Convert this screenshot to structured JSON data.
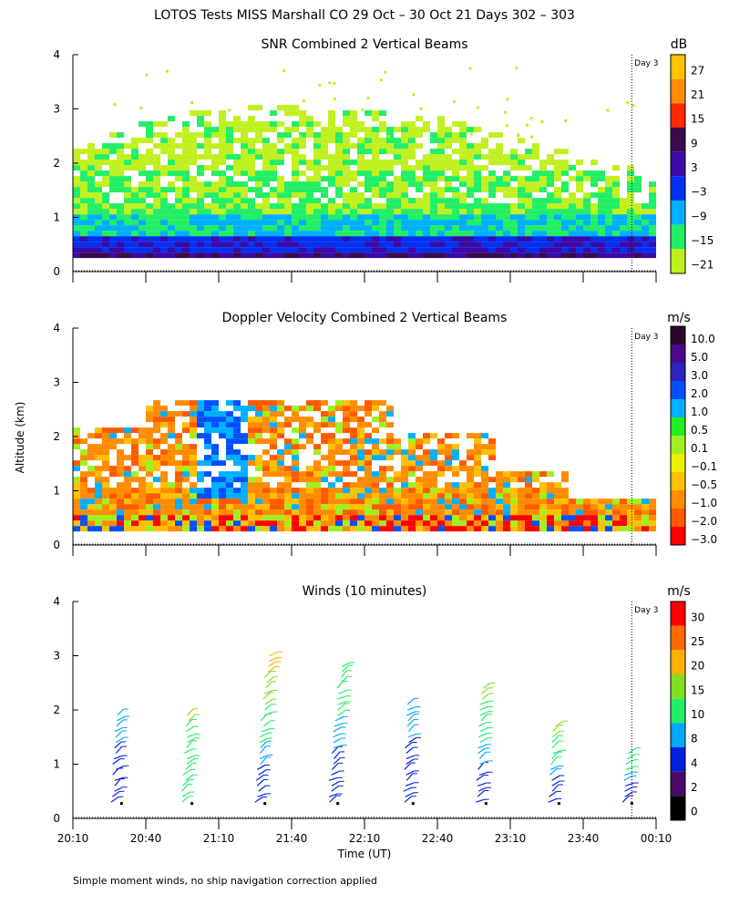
{
  "main_title": "LOTOS Tests MISS Marshall CO  29 Oct – 30 Oct 21 Days 302 – 303",
  "footer_note": "Simple moment winds, no ship navigation correction applied",
  "y_axis_label": "Altitude (km)",
  "x_axis_label": "Time (UT)",
  "day_marker_label": "Day 3",
  "chart_data": [
    {
      "id": "snr",
      "type": "heatmap",
      "title": "SNR Combined 2 Vertical Beams",
      "xlabel": "Time (UT)",
      "ylabel": "Altitude (km)",
      "x_ticks": [
        "20:10",
        "20:40",
        "21:10",
        "21:40",
        "22:10",
        "22:40",
        "23:10",
        "23:40",
        "00:10"
      ],
      "y_ticks": [
        "0",
        "1",
        "2",
        "3",
        "4"
      ],
      "ylim": [
        0,
        4
      ],
      "colorbar_unit": "dB",
      "colorbar_labels": [
        "27",
        "21",
        "15",
        "9",
        "3",
        "−3",
        "−9",
        "−15",
        "−21"
      ],
      "colorbar_colors": [
        "#ffc200",
        "#ff8c00",
        "#ff2a00",
        "#3b0a4f",
        "#3a0aa8",
        "#0030f0",
        "#00b0ff",
        "#22ee66",
        "#c0f020"
      ],
      "day_boundary_time": "00:00",
      "echo_top_km_by_hour": [
        2.3,
        2.6,
        2.9,
        2.9,
        2.8,
        2.7,
        2.3,
        2.0,
        1.7
      ]
    },
    {
      "id": "doppler",
      "type": "heatmap",
      "title": "Doppler Velocity Combined 2 Vertical Beams",
      "xlabel": "Time (UT)",
      "ylabel": "Altitude (km)",
      "x_ticks": [
        "20:10",
        "20:40",
        "21:10",
        "21:40",
        "22:10",
        "22:40",
        "23:10",
        "23:40",
        "00:10"
      ],
      "y_ticks": [
        "0",
        "1",
        "2",
        "3",
        "4"
      ],
      "ylim": [
        0,
        4
      ],
      "colorbar_unit": "m/s",
      "colorbar_labels": [
        "10.0",
        "5.0",
        "3.0",
        "2.0",
        "1.0",
        "0.5",
        "0.1",
        "−0.1",
        "−0.5",
        "−1.0",
        "−2.0",
        "−3.0"
      ],
      "colorbar_colors": [
        "#2a0a2a",
        "#4b0a8a",
        "#3020c0",
        "#0050ff",
        "#00b0ff",
        "#22ee22",
        "#a0f020",
        "#f0f000",
        "#ffc000",
        "#ff8c00",
        "#ff5a00",
        "#ff0000"
      ],
      "day_boundary_time": "00:00"
    },
    {
      "id": "winds",
      "type": "scatter",
      "title": "Winds (10 minutes)",
      "xlabel": "Time (UT)",
      "ylabel": "Altitude (km)",
      "x_ticks": [
        "20:10",
        "20:40",
        "21:10",
        "21:40",
        "22:10",
        "22:40",
        "23:10",
        "23:40",
        "00:10"
      ],
      "y_ticks": [
        "0",
        "1",
        "2",
        "3",
        "4"
      ],
      "ylim": [
        0,
        4
      ],
      "colorbar_unit": "m/s",
      "colorbar_labels": [
        "30",
        "25",
        "20",
        "15",
        "10",
        "8",
        "4",
        "2",
        "0"
      ],
      "colorbar_colors": [
        "#ff0000",
        "#ff6a00",
        "#ffb000",
        "#80e020",
        "#22ee66",
        "#00a8ff",
        "#0020e0",
        "#4b0a6a",
        "#000000"
      ],
      "day_boundary_time": "00:00",
      "profiles": [
        {
          "time": "20:30",
          "top_km": 2.0,
          "top_speed": 10,
          "mid_speed": 6
        },
        {
          "time": "20:59",
          "top_km": 2.0,
          "top_speed": 16,
          "mid_speed": 12
        },
        {
          "time": "21:29",
          "top_km": 3.1,
          "top_speed": 24,
          "mid_speed": 6
        },
        {
          "time": "21:59",
          "top_km": 2.9,
          "top_speed": 15,
          "mid_speed": 6
        },
        {
          "time": "22:30",
          "top_km": 2.2,
          "top_speed": 10,
          "mid_speed": 6
        },
        {
          "time": "23:00",
          "top_km": 2.5,
          "top_speed": 18,
          "mid_speed": 6
        },
        {
          "time": "23:30",
          "top_km": 1.8,
          "top_speed": 19,
          "mid_speed": 6
        },
        {
          "time": "00:00",
          "top_km": 1.2,
          "top_speed": 14,
          "mid_speed": 6
        }
      ]
    }
  ]
}
